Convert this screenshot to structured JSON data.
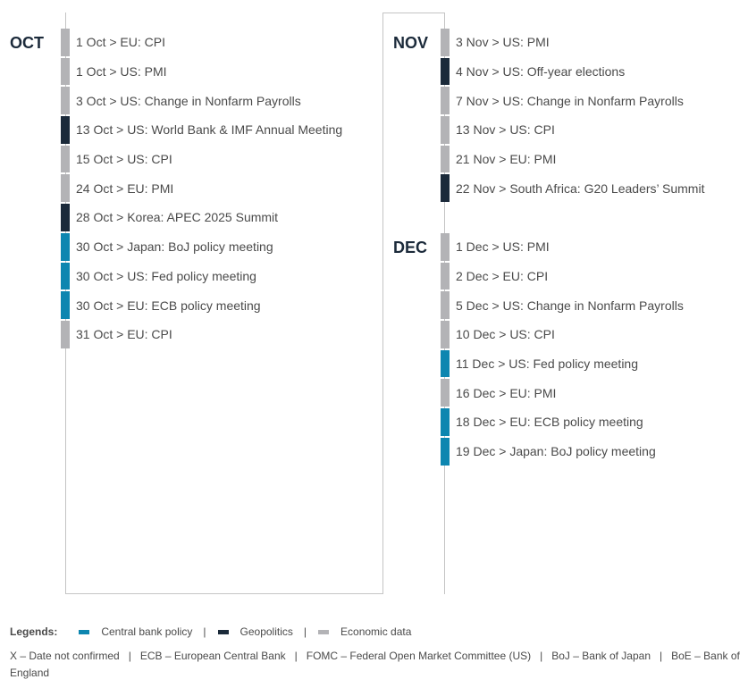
{
  "colors": {
    "central_bank": "#0d86b0",
    "geopolitics": "#1b2a3a",
    "economic": "#b3b3b6"
  },
  "months": [
    {
      "label": "OCT",
      "events": [
        {
          "text": "1 Oct > EU: CPI",
          "category": "economic"
        },
        {
          "text": "1 Oct > US: PMI",
          "category": "economic"
        },
        {
          "text": "3 Oct > US: Change in Nonfarm Payrolls",
          "category": "economic"
        },
        {
          "text": "13 Oct > US: World Bank & IMF Annual Meeting",
          "category": "geopolitics"
        },
        {
          "text": "15 Oct > US: CPI",
          "category": "economic"
        },
        {
          "text": "24 Oct > EU: PMI",
          "category": "economic"
        },
        {
          "text": "28 Oct > Korea: APEC 2025 Summit",
          "category": "geopolitics"
        },
        {
          "text": "30 Oct > Japan: BoJ policy meeting",
          "category": "central_bank"
        },
        {
          "text": "30 Oct > US: Fed policy meeting",
          "category": "central_bank"
        },
        {
          "text": "30 Oct > EU: ECB policy meeting",
          "category": "central_bank"
        },
        {
          "text": "31 Oct > EU: CPI",
          "category": "economic"
        }
      ]
    },
    {
      "label": "NOV",
      "events": [
        {
          "text": "3 Nov > US: PMI",
          "category": "economic"
        },
        {
          "text": "4 Nov > US: Off-year elections",
          "category": "geopolitics"
        },
        {
          "text": "7 Nov > US: Change in Nonfarm Payrolls",
          "category": "economic"
        },
        {
          "text": "13 Nov > US: CPI",
          "category": "economic"
        },
        {
          "text": "21 Nov > EU: PMI",
          "category": "economic"
        },
        {
          "text": "22 Nov > South Africa: G20 Leaders’ Summit",
          "category": "geopolitics"
        }
      ]
    },
    {
      "label": "DEC",
      "events": [
        {
          "text": "1 Dec > US: PMI",
          "category": "economic"
        },
        {
          "text": "2 Dec > EU: CPI",
          "category": "economic"
        },
        {
          "text": "5 Dec > US: Change in Nonfarm Payrolls",
          "category": "economic"
        },
        {
          "text": "10 Dec > US: CPI",
          "category": "economic"
        },
        {
          "text": "11 Dec > US: Fed policy meeting",
          "category": "central_bank"
        },
        {
          "text": "16 Dec > EU: PMI",
          "category": "economic"
        },
        {
          "text": "18 Dec > EU: ECB policy meeting",
          "category": "central_bank"
        },
        {
          "text": "19 Dec > Japan: BoJ policy meeting",
          "category": "central_bank"
        }
      ]
    }
  ],
  "legend": {
    "title": "Legends:",
    "items": [
      {
        "label": "Central bank policy",
        "category": "central_bank"
      },
      {
        "label": "Geopolitics",
        "category": "geopolitics"
      },
      {
        "label": "Economic data",
        "category": "economic"
      }
    ],
    "separator": "|"
  },
  "abbreviations": "X – Date not confirmed   |   ECB – European Central Bank   |   FOMC – Federal Open Market Committee (US)   |   BoJ – Bank of Japan   |   BoE – Bank of England"
}
